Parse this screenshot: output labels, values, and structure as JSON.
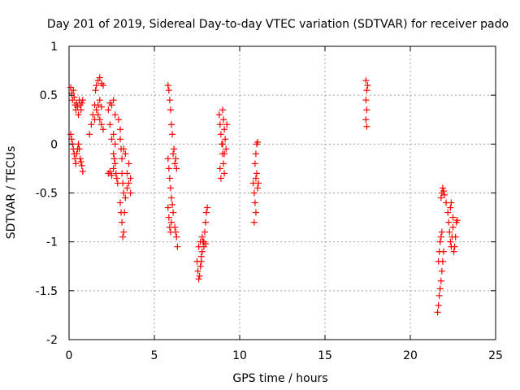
{
  "chart_data": {
    "type": "scatter",
    "title": "Day 201 of 2019, Sidereal Day-to-day VTEC variation (SDTVAR) for receiver pado",
    "xlabel": "GPS time / hours",
    "ylabel": "SDTVAR / TECUs",
    "xlim": [
      0,
      25
    ],
    "ylim": [
      -2,
      1
    ],
    "xticks": [
      0,
      5,
      10,
      15,
      20,
      25
    ],
    "xtick_labels": [
      "0",
      "5",
      "10",
      "15",
      "20",
      "25"
    ],
    "yticks": [
      -2,
      -1.5,
      -1,
      -0.5,
      0,
      0.5,
      1
    ],
    "ytick_labels": [
      "-2",
      "-1.5",
      "-1",
      "-0.5",
      "0",
      "0.5",
      "1"
    ],
    "grid": true,
    "marker": "+",
    "color": "#ff0000",
    "series": [
      {
        "name": "SDTVAR",
        "points": [
          [
            0.1,
            0.58
          ],
          [
            0.15,
            0.52
          ],
          [
            0.2,
            0.45
          ],
          [
            0.25,
            0.55
          ],
          [
            0.3,
            0.48
          ],
          [
            0.35,
            0.4
          ],
          [
            0.4,
            0.35
          ],
          [
            0.45,
            0.42
          ],
          [
            0.5,
            0.38
          ],
          [
            0.55,
            0.3
          ],
          [
            0.6,
            0.45
          ],
          [
            0.65,
            0.4
          ],
          [
            0.7,
            0.35
          ],
          [
            0.75,
            0.42
          ],
          [
            0.8,
            0.45
          ],
          [
            0.1,
            0.1
          ],
          [
            0.15,
            0.05
          ],
          [
            0.2,
            0.0
          ],
          [
            0.25,
            -0.05
          ],
          [
            0.3,
            -0.1
          ],
          [
            0.35,
            -0.15
          ],
          [
            0.4,
            -0.2
          ],
          [
            0.45,
            -0.1
          ],
          [
            0.5,
            -0.05
          ],
          [
            0.55,
            0.0
          ],
          [
            0.6,
            -0.05
          ],
          [
            0.65,
            -0.15
          ],
          [
            0.7,
            -0.18
          ],
          [
            0.75,
            -0.22
          ],
          [
            0.8,
            -0.28
          ],
          [
            1.2,
            0.1
          ],
          [
            1.3,
            0.2
          ],
          [
            1.4,
            0.3
          ],
          [
            1.5,
            0.4
          ],
          [
            1.55,
            0.55
          ],
          [
            1.6,
            0.6
          ],
          [
            1.7,
            0.65
          ],
          [
            1.8,
            0.68
          ],
          [
            1.9,
            0.62
          ],
          [
            2.0,
            0.6
          ],
          [
            1.5,
            0.25
          ],
          [
            1.6,
            0.35
          ],
          [
            1.7,
            0.3
          ],
          [
            1.8,
            0.25
          ],
          [
            1.9,
            0.2
          ],
          [
            2.0,
            0.15
          ],
          [
            1.7,
            0.4
          ],
          [
            1.8,
            0.45
          ],
          [
            1.9,
            0.38
          ],
          [
            2.3,
            0.35
          ],
          [
            2.4,
            0.42
          ],
          [
            2.5,
            0.4
          ],
          [
            2.6,
            0.45
          ],
          [
            2.7,
            0.3
          ],
          [
            2.4,
            0.2
          ],
          [
            2.5,
            0.05
          ],
          [
            2.6,
            -0.1
          ],
          [
            2.65,
            -0.15
          ],
          [
            2.3,
            -0.3
          ],
          [
            2.4,
            -0.28
          ],
          [
            2.5,
            -0.32
          ],
          [
            2.6,
            -0.25
          ],
          [
            2.7,
            -0.2
          ],
          [
            2.75,
            -0.3
          ],
          [
            2.8,
            -0.35
          ],
          [
            2.85,
            -0.4
          ],
          [
            2.7,
            0.0
          ],
          [
            2.6,
            0.1
          ],
          [
            2.9,
            0.25
          ],
          [
            3.0,
            0.15
          ],
          [
            3.0,
            0.05
          ],
          [
            3.05,
            -0.05
          ],
          [
            3.1,
            -0.15
          ],
          [
            3.1,
            -0.3
          ],
          [
            3.15,
            -0.4
          ],
          [
            3.2,
            -0.5
          ],
          [
            3.0,
            -0.6
          ],
          [
            3.05,
            -0.7
          ],
          [
            3.1,
            -0.8
          ],
          [
            3.15,
            -0.95
          ],
          [
            3.2,
            -0.9
          ],
          [
            3.25,
            -0.7
          ],
          [
            3.3,
            -0.55
          ],
          [
            3.4,
            -0.45
          ],
          [
            3.5,
            -0.4
          ],
          [
            3.6,
            -0.35
          ],
          [
            3.4,
            -0.3
          ],
          [
            3.5,
            -0.2
          ],
          [
            3.6,
            -0.5
          ],
          [
            3.3,
            -0.1
          ],
          [
            3.2,
            -0.05
          ],
          [
            5.8,
            0.6
          ],
          [
            5.85,
            0.55
          ],
          [
            5.9,
            0.45
          ],
          [
            5.95,
            0.35
          ],
          [
            6.0,
            0.2
          ],
          [
            6.05,
            0.1
          ],
          [
            5.8,
            -0.15
          ],
          [
            5.85,
            -0.25
          ],
          [
            5.9,
            -0.35
          ],
          [
            5.95,
            -0.45
          ],
          [
            6.0,
            -0.55
          ],
          [
            6.05,
            -0.62
          ],
          [
            6.1,
            -0.1
          ],
          [
            6.15,
            -0.05
          ],
          [
            6.2,
            -0.2
          ],
          [
            6.25,
            -0.15
          ],
          [
            6.3,
            -0.25
          ],
          [
            5.8,
            -0.65
          ],
          [
            5.85,
            -0.75
          ],
          [
            5.9,
            -0.85
          ],
          [
            5.95,
            -0.9
          ],
          [
            6.0,
            -0.8
          ],
          [
            6.1,
            -0.7
          ],
          [
            6.2,
            -0.85
          ],
          [
            6.3,
            -0.95
          ],
          [
            6.35,
            -1.05
          ],
          [
            6.25,
            -0.9
          ],
          [
            7.5,
            -1.2
          ],
          [
            7.55,
            -1.3
          ],
          [
            7.6,
            -1.38
          ],
          [
            7.65,
            -1.35
          ],
          [
            7.7,
            -1.25
          ],
          [
            7.75,
            -1.15
          ],
          [
            7.8,
            -1.1
          ],
          [
            7.85,
            -1.0
          ],
          [
            7.9,
            -1.05
          ],
          [
            7.95,
            -0.9
          ],
          [
            8.0,
            -0.8
          ],
          [
            8.05,
            -0.7
          ],
          [
            8.1,
            -0.65
          ],
          [
            7.6,
            -1.05
          ],
          [
            7.7,
            -1.0
          ],
          [
            7.8,
            -0.95
          ],
          [
            7.9,
            -1.0
          ],
          [
            8.0,
            -1.02
          ],
          [
            7.75,
            -1.2
          ],
          [
            8.8,
            0.3
          ],
          [
            8.85,
            0.2
          ],
          [
            8.9,
            0.1
          ],
          [
            8.95,
            0.0
          ],
          [
            9.0,
            -0.1
          ],
          [
            9.05,
            -0.2
          ],
          [
            9.1,
            -0.3
          ],
          [
            8.85,
            -0.25
          ],
          [
            8.9,
            -0.35
          ],
          [
            9.0,
            0.35
          ],
          [
            9.05,
            0.25
          ],
          [
            9.1,
            0.15
          ],
          [
            9.15,
            0.05
          ],
          [
            9.2,
            -0.05
          ],
          [
            9.25,
            0.2
          ],
          [
            9.0,
            0.0
          ],
          [
            9.1,
            -0.1
          ],
          [
            10.8,
            -0.4
          ],
          [
            10.85,
            -0.5
          ],
          [
            10.9,
            -0.6
          ],
          [
            10.95,
            -0.7
          ],
          [
            10.85,
            -0.8
          ],
          [
            10.9,
            -0.2
          ],
          [
            10.95,
            -0.1
          ],
          [
            11.0,
            0.0
          ],
          [
            11.05,
            0.02
          ],
          [
            11.0,
            -0.3
          ],
          [
            11.05,
            -0.45
          ],
          [
            10.95,
            -0.35
          ],
          [
            11.1,
            -0.4
          ],
          [
            17.4,
            0.65
          ],
          [
            17.45,
            0.55
          ],
          [
            17.4,
            0.45
          ],
          [
            17.45,
            0.35
          ],
          [
            17.4,
            0.25
          ],
          [
            17.45,
            0.18
          ],
          [
            17.5,
            0.6
          ],
          [
            21.6,
            -1.72
          ],
          [
            21.65,
            -1.65
          ],
          [
            21.7,
            -1.55
          ],
          [
            21.75,
            -1.48
          ],
          [
            21.8,
            -1.4
          ],
          [
            21.85,
            -1.3
          ],
          [
            21.9,
            -1.2
          ],
          [
            21.95,
            -1.1
          ],
          [
            21.65,
            -1.2
          ],
          [
            21.7,
            -1.1
          ],
          [
            21.75,
            -1.0
          ],
          [
            21.8,
            -0.95
          ],
          [
            21.85,
            -0.9
          ],
          [
            21.8,
            -0.55
          ],
          [
            21.85,
            -0.5
          ],
          [
            21.9,
            -0.45
          ],
          [
            21.95,
            -0.48
          ],
          [
            22.0,
            -0.52
          ],
          [
            22.1,
            -0.6
          ],
          [
            22.2,
            -0.7
          ],
          [
            22.25,
            -0.8
          ],
          [
            22.3,
            -0.9
          ],
          [
            22.35,
            -1.0
          ],
          [
            22.4,
            -1.05
          ],
          [
            22.45,
            -0.95
          ],
          [
            22.5,
            -0.85
          ],
          [
            22.55,
            -1.1
          ],
          [
            22.6,
            -1.05
          ],
          [
            22.65,
            -0.95
          ],
          [
            22.7,
            -0.8
          ],
          [
            22.75,
            -0.78
          ],
          [
            22.35,
            -0.65
          ],
          [
            22.4,
            -0.6
          ],
          [
            22.5,
            -0.75
          ]
        ]
      }
    ]
  }
}
